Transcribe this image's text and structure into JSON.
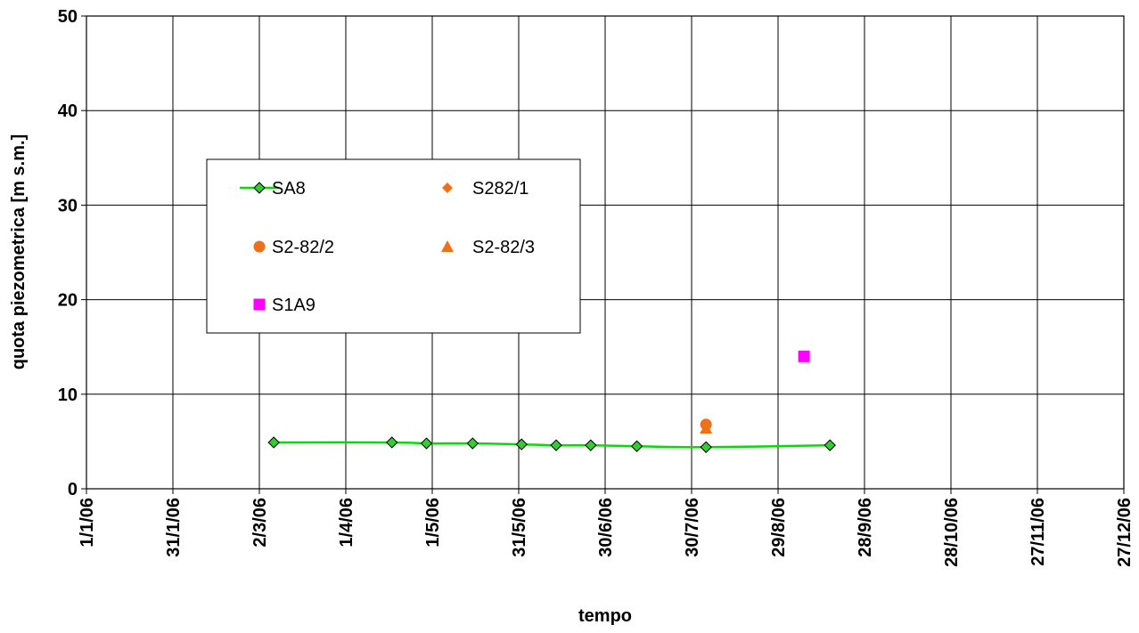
{
  "chart_data": {
    "type": "scatter",
    "xlabel": "tempo",
    "ylabel": "quota piezometrica [m s.m.]",
    "ylim": [
      0,
      50
    ],
    "yticks": [
      0,
      10,
      20,
      30,
      40,
      50
    ],
    "xlim": [
      "2006-01-01",
      "2006-12-27"
    ],
    "xticks": [
      "2006-01-01",
      "2006-01-31",
      "2006-03-02",
      "2006-04-01",
      "2006-05-01",
      "2006-05-31",
      "2006-06-30",
      "2006-07-30",
      "2006-08-29",
      "2006-09-28",
      "2006-10-28",
      "2006-11-27",
      "2006-12-27"
    ],
    "xtick_labels": [
      "1/1/06",
      "31/1/06",
      "2/3/06",
      "1/4/06",
      "1/5/06",
      "31/5/06",
      "30/6/06",
      "30/7/06",
      "29/8/06",
      "28/9/06",
      "28/10/06",
      "27/11/06",
      "27/12/06"
    ],
    "grid": true,
    "legend_position": "upper-left",
    "series": [
      {
        "name": "SA8",
        "style": "line-diamond",
        "line_color": "#00e000",
        "marker_color": "#33cc33",
        "points": [
          {
            "x": "2006-03-07",
            "y": 4.9
          },
          {
            "x": "2006-04-17",
            "y": 4.9
          },
          {
            "x": "2006-04-29",
            "y": 4.8
          },
          {
            "x": "2006-05-15",
            "y": 4.8
          },
          {
            "x": "2006-06-01",
            "y": 4.7
          },
          {
            "x": "2006-06-13",
            "y": 4.6
          },
          {
            "x": "2006-06-25",
            "y": 4.6
          },
          {
            "x": "2006-07-11",
            "y": 4.5
          },
          {
            "x": "2006-08-04",
            "y": 4.4
          },
          {
            "x": "2006-09-16",
            "y": 4.6
          }
        ]
      },
      {
        "name": "S282/1",
        "style": "diamond",
        "marker_color": "#f07018",
        "points": [
          {
            "x": "2006-08-04",
            "y": 6.6
          }
        ]
      },
      {
        "name": "S2-82/2",
        "style": "circle",
        "marker_color": "#f07018",
        "points": [
          {
            "x": "2006-08-04",
            "y": 6.8
          }
        ]
      },
      {
        "name": "S2-82/3",
        "style": "triangle",
        "marker_color": "#f07018",
        "points": [
          {
            "x": "2006-08-04",
            "y": 6.4
          }
        ]
      },
      {
        "name": "S1A9",
        "style": "square",
        "marker_color": "#ff00ff",
        "points": [
          {
            "x": "2006-09-07",
            "y": 14.0
          }
        ]
      }
    ]
  }
}
